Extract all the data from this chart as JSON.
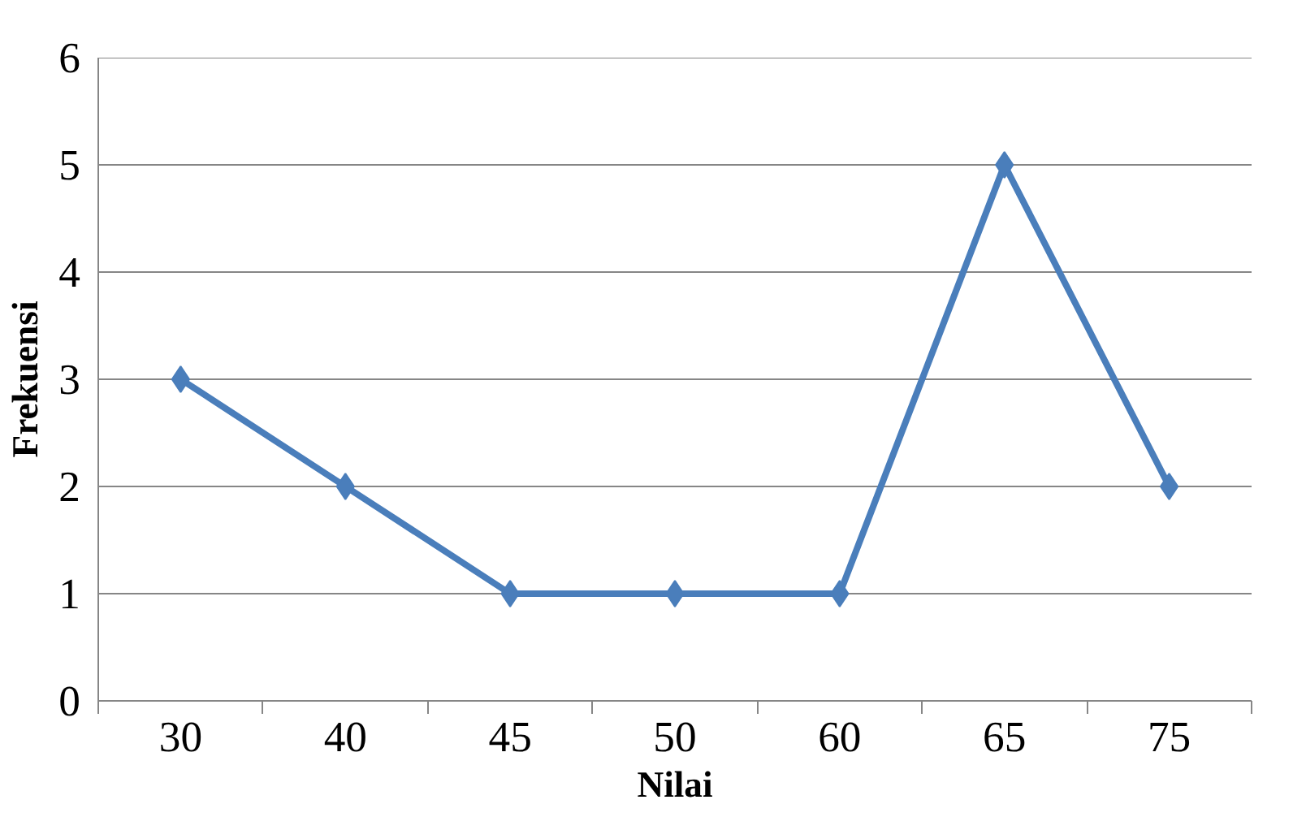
{
  "chart_data": {
    "type": "line",
    "xlabel": "Nilai",
    "ylabel": "Frekuensi",
    "categories": [
      "30",
      "40",
      "45",
      "50",
      "60",
      "65",
      "75"
    ],
    "series": [
      {
        "color": "#4a7ebb",
        "values": [
          3,
          2,
          1,
          1,
          1,
          5,
          2
        ]
      }
    ],
    "ylim": [
      0,
      6
    ],
    "yticks": [
      0,
      1,
      2,
      3,
      4,
      5,
      6
    ],
    "grid": "y",
    "marker": "diamond",
    "line_style": "solid"
  }
}
